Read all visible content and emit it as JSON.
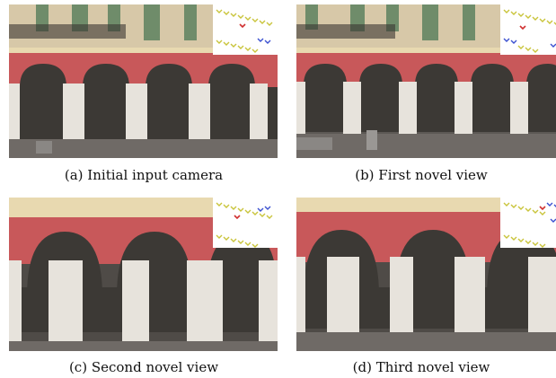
{
  "figure": {
    "panels": [
      {
        "id": "a",
        "caption": "(a) Initial input camera"
      },
      {
        "id": "b",
        "caption": "(b) First novel view"
      },
      {
        "id": "c",
        "caption": "(c) Second novel view"
      },
      {
        "id": "d",
        "caption": "(d) Third novel view"
      }
    ],
    "colors": {
      "wall_red": "#c8585a",
      "column_white": "#e7e3dc",
      "arch_trim": "#e8d9b0",
      "upper_facade": "#d7c8a8",
      "shutter_green": "#6f8c6a",
      "ground": "#6f6a66",
      "camera_marker_yellow": "#c9c43a",
      "camera_marker_blue": "#3a4fd0",
      "camera_marker_red": "#d03030"
    }
  }
}
